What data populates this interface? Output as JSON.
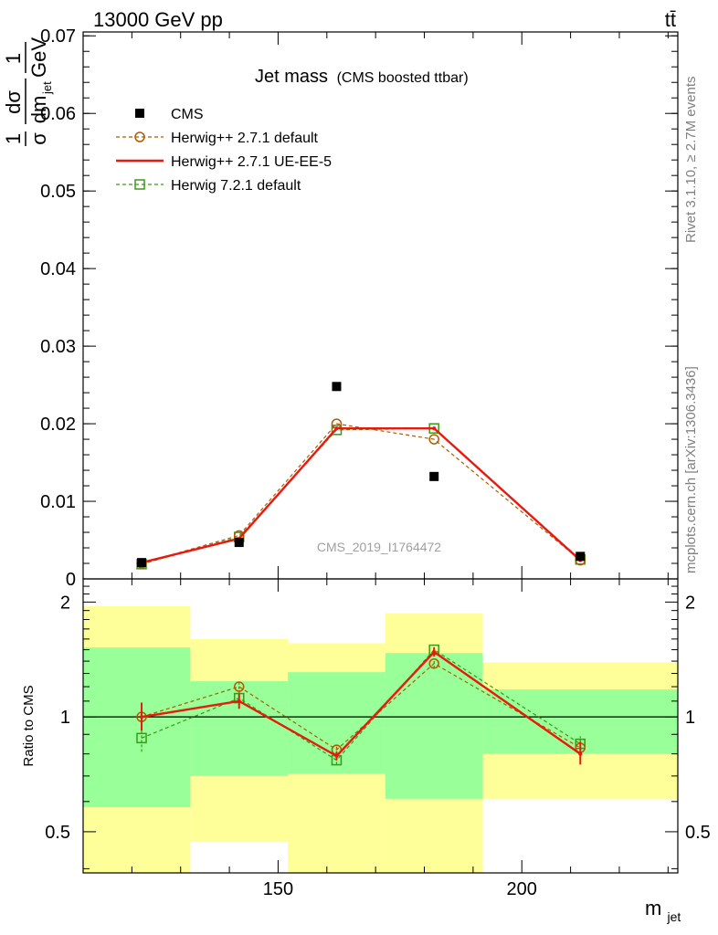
{
  "header": {
    "energy": "13000 GeV pp",
    "process": "tt̄"
  },
  "side": {
    "rivet": "Rivet 3.1.10, ≥ 2.7M events",
    "mcplots": "mcplots.cern.ch [arXiv:1306.3436]"
  },
  "plot": {
    "title": "Jet mass",
    "title_sub": "(CMS boosted ttbar)",
    "watermark": "CMS_2019_I1764472",
    "ylabel_top": {
      "frac1_num": "1",
      "frac1_den": "σ",
      "frac2_num": "dσ",
      "frac2_den": "dm",
      "frac2_den_sub": "jet",
      "frac3_num": "1",
      "frac3_den": "GeV"
    },
    "ratio_ylabel": "Ratio to CMS",
    "xlabel": "m",
    "xlabel_sub": "jet"
  },
  "colors": {
    "data": "#000000",
    "herwigpp_default": "#b35900",
    "herwigpp_ueee5": "#e8190f",
    "herwig7": "#3a9a16",
    "band_inner": "#99ff99",
    "band_outer": "#ffff99"
  },
  "chart_data": {
    "type": "scatter",
    "x_edges": [
      110,
      132,
      152,
      172,
      192,
      232
    ],
    "x_points": [
      122,
      142,
      162,
      182,
      212
    ],
    "xlim": [
      110,
      232
    ],
    "x_ticks": [
      150,
      200
    ],
    "top": {
      "ylim": [
        0,
        0.0705
      ],
      "y_ticks": [
        0,
        0.01,
        0.02,
        0.03,
        0.04,
        0.05,
        0.06,
        0.07
      ],
      "y_tick_labels": [
        "0",
        "0.01",
        "0.02",
        "0.03",
        "0.04",
        "0.05",
        "0.06",
        "0.07"
      ]
    },
    "ratio": {
      "ylim": [
        0.39,
        2.3
      ],
      "log": true,
      "y_ticks": [
        0.5,
        1,
        2
      ],
      "y_tick_labels": [
        "0.5",
        "1",
        "2"
      ],
      "band_inner": [
        [
          0.58,
          1.52
        ],
        [
          0.7,
          1.24
        ],
        [
          0.71,
          1.31
        ],
        [
          0.61,
          1.47
        ],
        [
          0.8,
          1.18
        ]
      ],
      "band_outer": [
        [
          0.3,
          1.95
        ],
        [
          0.47,
          1.6
        ],
        [
          0.32,
          1.56
        ],
        [
          0.27,
          1.87
        ],
        [
          0.61,
          1.39
        ]
      ]
    },
    "series": [
      {
        "name": "CMS",
        "key": "cms",
        "values": [
          0.0021,
          0.0047,
          0.0248,
          0.0132,
          0.0029
        ],
        "ratio": [
          1,
          1,
          1,
          1,
          1
        ]
      },
      {
        "name": "Herwig++ 2.7.1 default",
        "key": "hpp_default",
        "values": [
          0.002,
          0.0056,
          0.02,
          0.018,
          0.0024
        ],
        "ratio": [
          1.0,
          1.2,
          0.82,
          1.38,
          0.83
        ]
      },
      {
        "name": "Herwig++ 2.7.1 UE-EE-5",
        "key": "hpp_ueee5",
        "values": [
          0.0021,
          0.0052,
          0.0194,
          0.0194,
          0.0024
        ],
        "ratio": [
          1.0,
          1.1,
          0.79,
          1.48,
          0.8
        ]
      },
      {
        "name": "Herwig 7.2.1 default",
        "key": "h7",
        "values": [
          0.0019,
          0.0054,
          0.0192,
          0.0194,
          0.0025
        ],
        "ratio": [
          0.88,
          1.12,
          0.77,
          1.5,
          0.85
        ]
      }
    ],
    "ratio_errors": {
      "hpp_default": [
        [
          1.0,
          1.0
        ],
        [
          1.15,
          1.25
        ],
        [
          0.8,
          0.84
        ],
        [
          1.34,
          1.42
        ],
        [
          0.79,
          0.87
        ]
      ],
      "hpp_ueee5": [
        [
          0.92,
          1.09
        ],
        [
          1.05,
          1.15
        ],
        [
          0.77,
          0.81
        ],
        [
          1.44,
          1.52
        ],
        [
          0.75,
          0.86
        ]
      ],
      "h7": [
        [
          0.81,
          0.96
        ],
        [
          1.08,
          1.16
        ],
        [
          0.75,
          0.79
        ],
        [
          1.46,
          1.54
        ],
        [
          0.81,
          0.89
        ]
      ]
    }
  }
}
